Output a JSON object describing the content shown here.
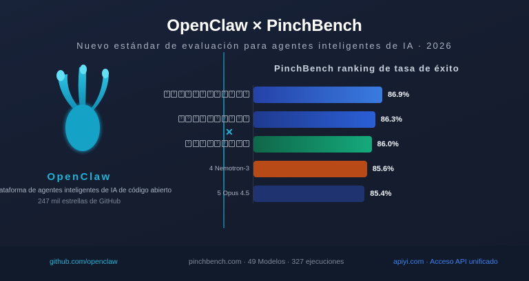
{
  "header": {
    "title": "OpenClaw × PinchBench",
    "subtitle": "Nuevo estándar de evaluación para agentes inteligentes de IA · 2026"
  },
  "brand": {
    "name": "OpenClaw",
    "description": "Plataforma de agentes inteligentes de IA de código abierto",
    "stars": "247 mil estrellas de GitHub",
    "logo_color": "#14a9cc",
    "icon": "claw-logo-icon"
  },
  "divider_mark": "✕",
  "chart_data": {
    "type": "bar",
    "orientation": "horizontal",
    "title": "PinchBench ranking de tasa de éxito",
    "categories": [
      "????????????",
      "??????????",
      "?????????",
      "4 Nemotron-3",
      "5 Opus 4.5"
    ],
    "values": [
      86.9,
      86.3,
      86.0,
      85.6,
      85.4
    ],
    "value_labels": [
      "86.9%",
      "86.3%",
      "86.0%",
      "85.6%",
      "85.4%"
    ],
    "colors": [
      [
        "#2442a8",
        "#3a7be0"
      ],
      [
        "#1f3a8f",
        "#2b5fd6"
      ],
      [
        "#0f6648",
        "#14aa7c"
      ],
      [
        "#b84a17",
        "#b84a17"
      ],
      [
        "#1e3370",
        "#1e3370"
      ]
    ],
    "xlim": [
      76,
      87.5
    ],
    "grid": false
  },
  "footer": {
    "left": "github.com/openclaw",
    "center": "pinchbench.com · 49 Modelos · 327 ejecuciones",
    "right": "apiyi.com · Acceso API unificado"
  },
  "colors": {
    "accent": "#1fb3d6",
    "link_blue": "#3b82f0",
    "muted": "#7f8898"
  }
}
